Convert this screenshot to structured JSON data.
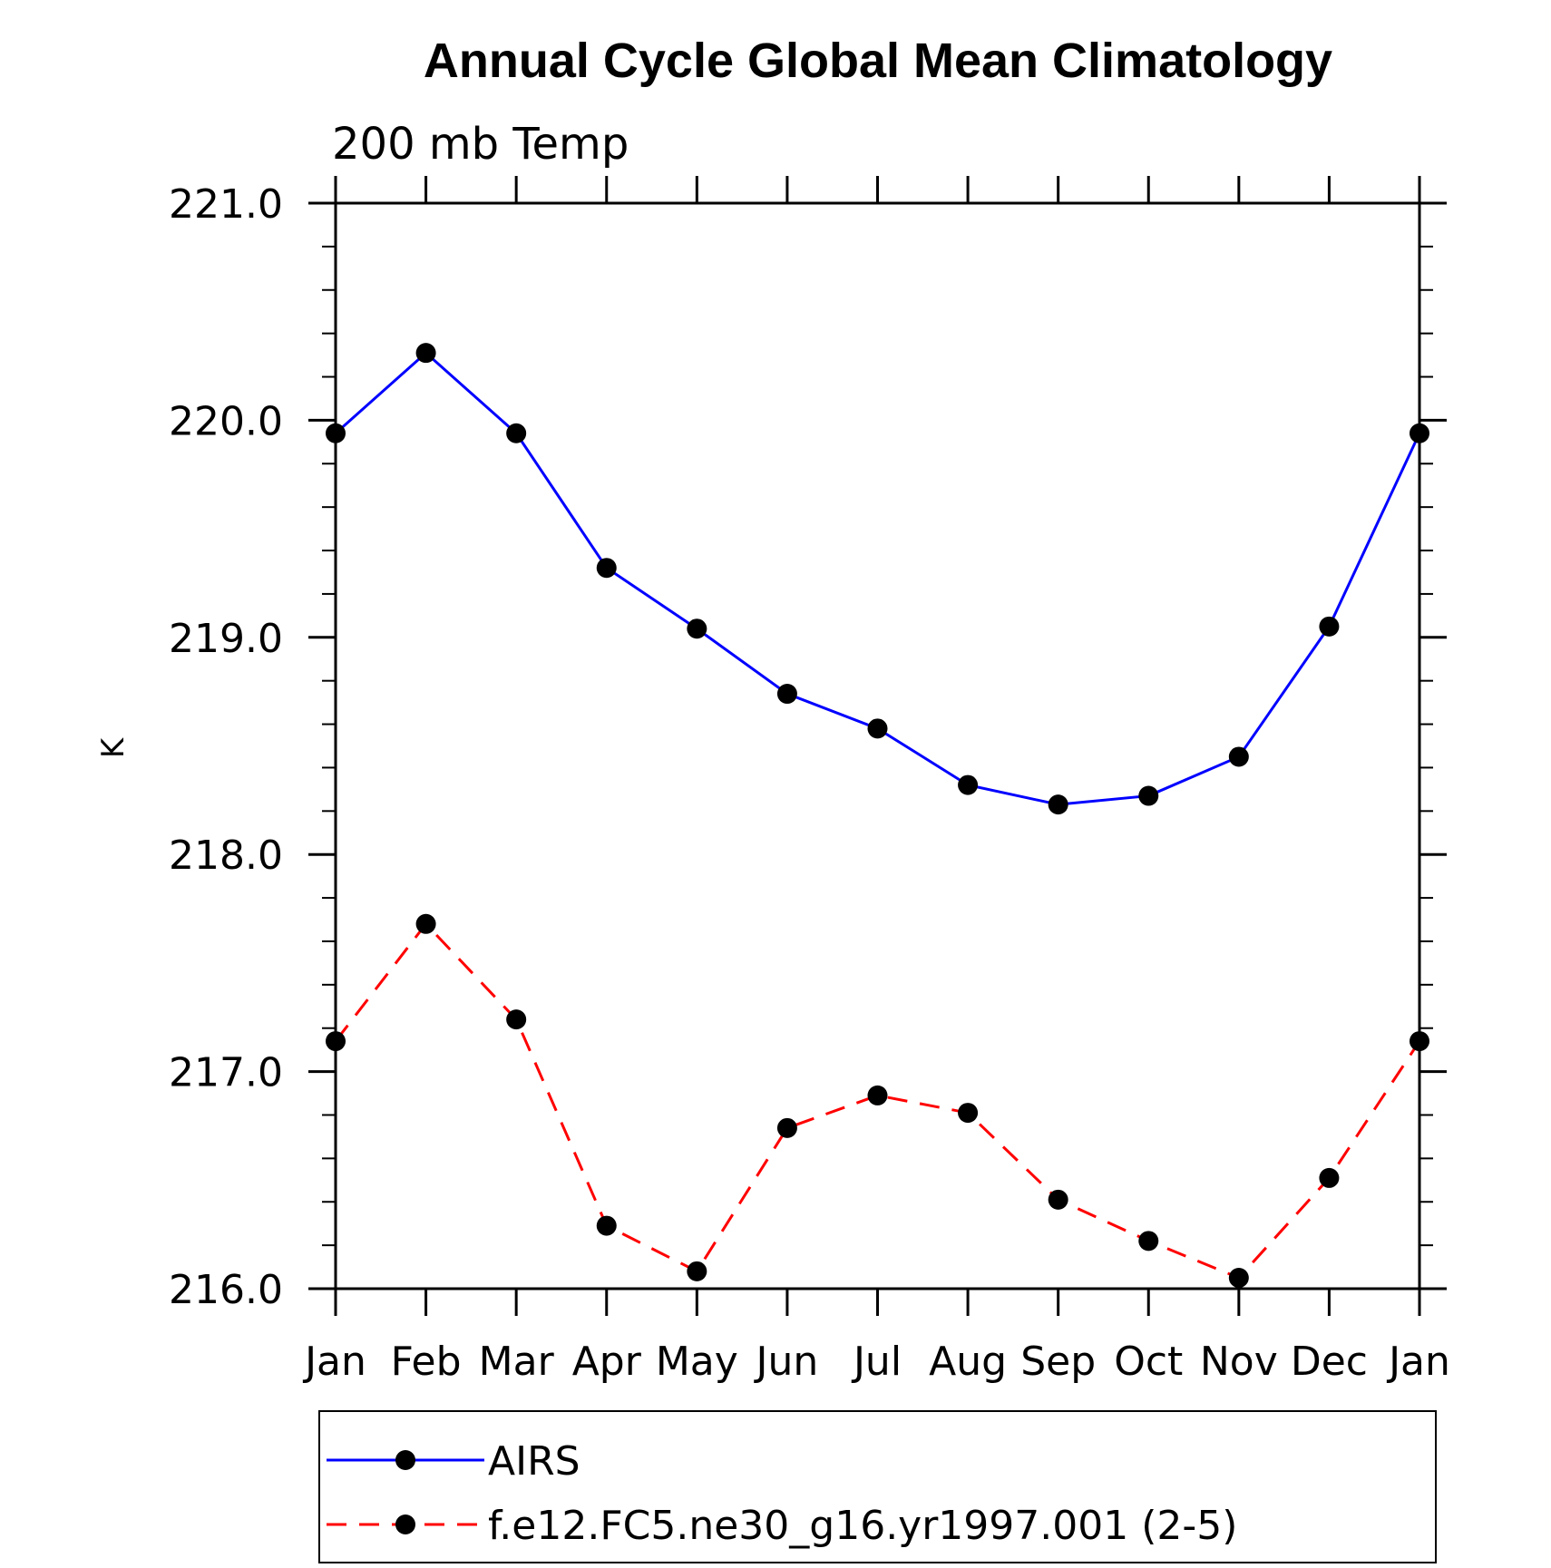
{
  "chart_data": {
    "type": "line",
    "title": "Annual Cycle Global Mean Climatology",
    "subtitle": "200 mb Temp",
    "xlabel": "",
    "ylabel": "K",
    "categories": [
      "Jan",
      "Feb",
      "Mar",
      "Apr",
      "May",
      "Jun",
      "Jul",
      "Aug",
      "Sep",
      "Oct",
      "Nov",
      "Dec",
      "Jan"
    ],
    "ylim": [
      216.0,
      221.0
    ],
    "yticks": [
      "216.0",
      "217.0",
      "218.0",
      "219.0",
      "220.0",
      "221.0"
    ],
    "series": [
      {
        "name": "AIRS",
        "color": "#0000ff",
        "style": "solid",
        "marker": "circle",
        "values": [
          219.94,
          220.31,
          219.94,
          219.32,
          219.04,
          218.74,
          218.58,
          218.32,
          218.23,
          218.27,
          218.45,
          219.05,
          219.94
        ]
      },
      {
        "name": "f.e12.FC5.ne30_g16.yr1997.001 (2-5)",
        "color": "#ff0000",
        "style": "dashed",
        "marker": "circle",
        "values": [
          217.14,
          217.68,
          217.24,
          216.29,
          216.08,
          216.74,
          216.89,
          216.81,
          216.41,
          216.22,
          216.05,
          216.51,
          217.14
        ]
      }
    ],
    "legend": "bottom",
    "grid": false
  }
}
